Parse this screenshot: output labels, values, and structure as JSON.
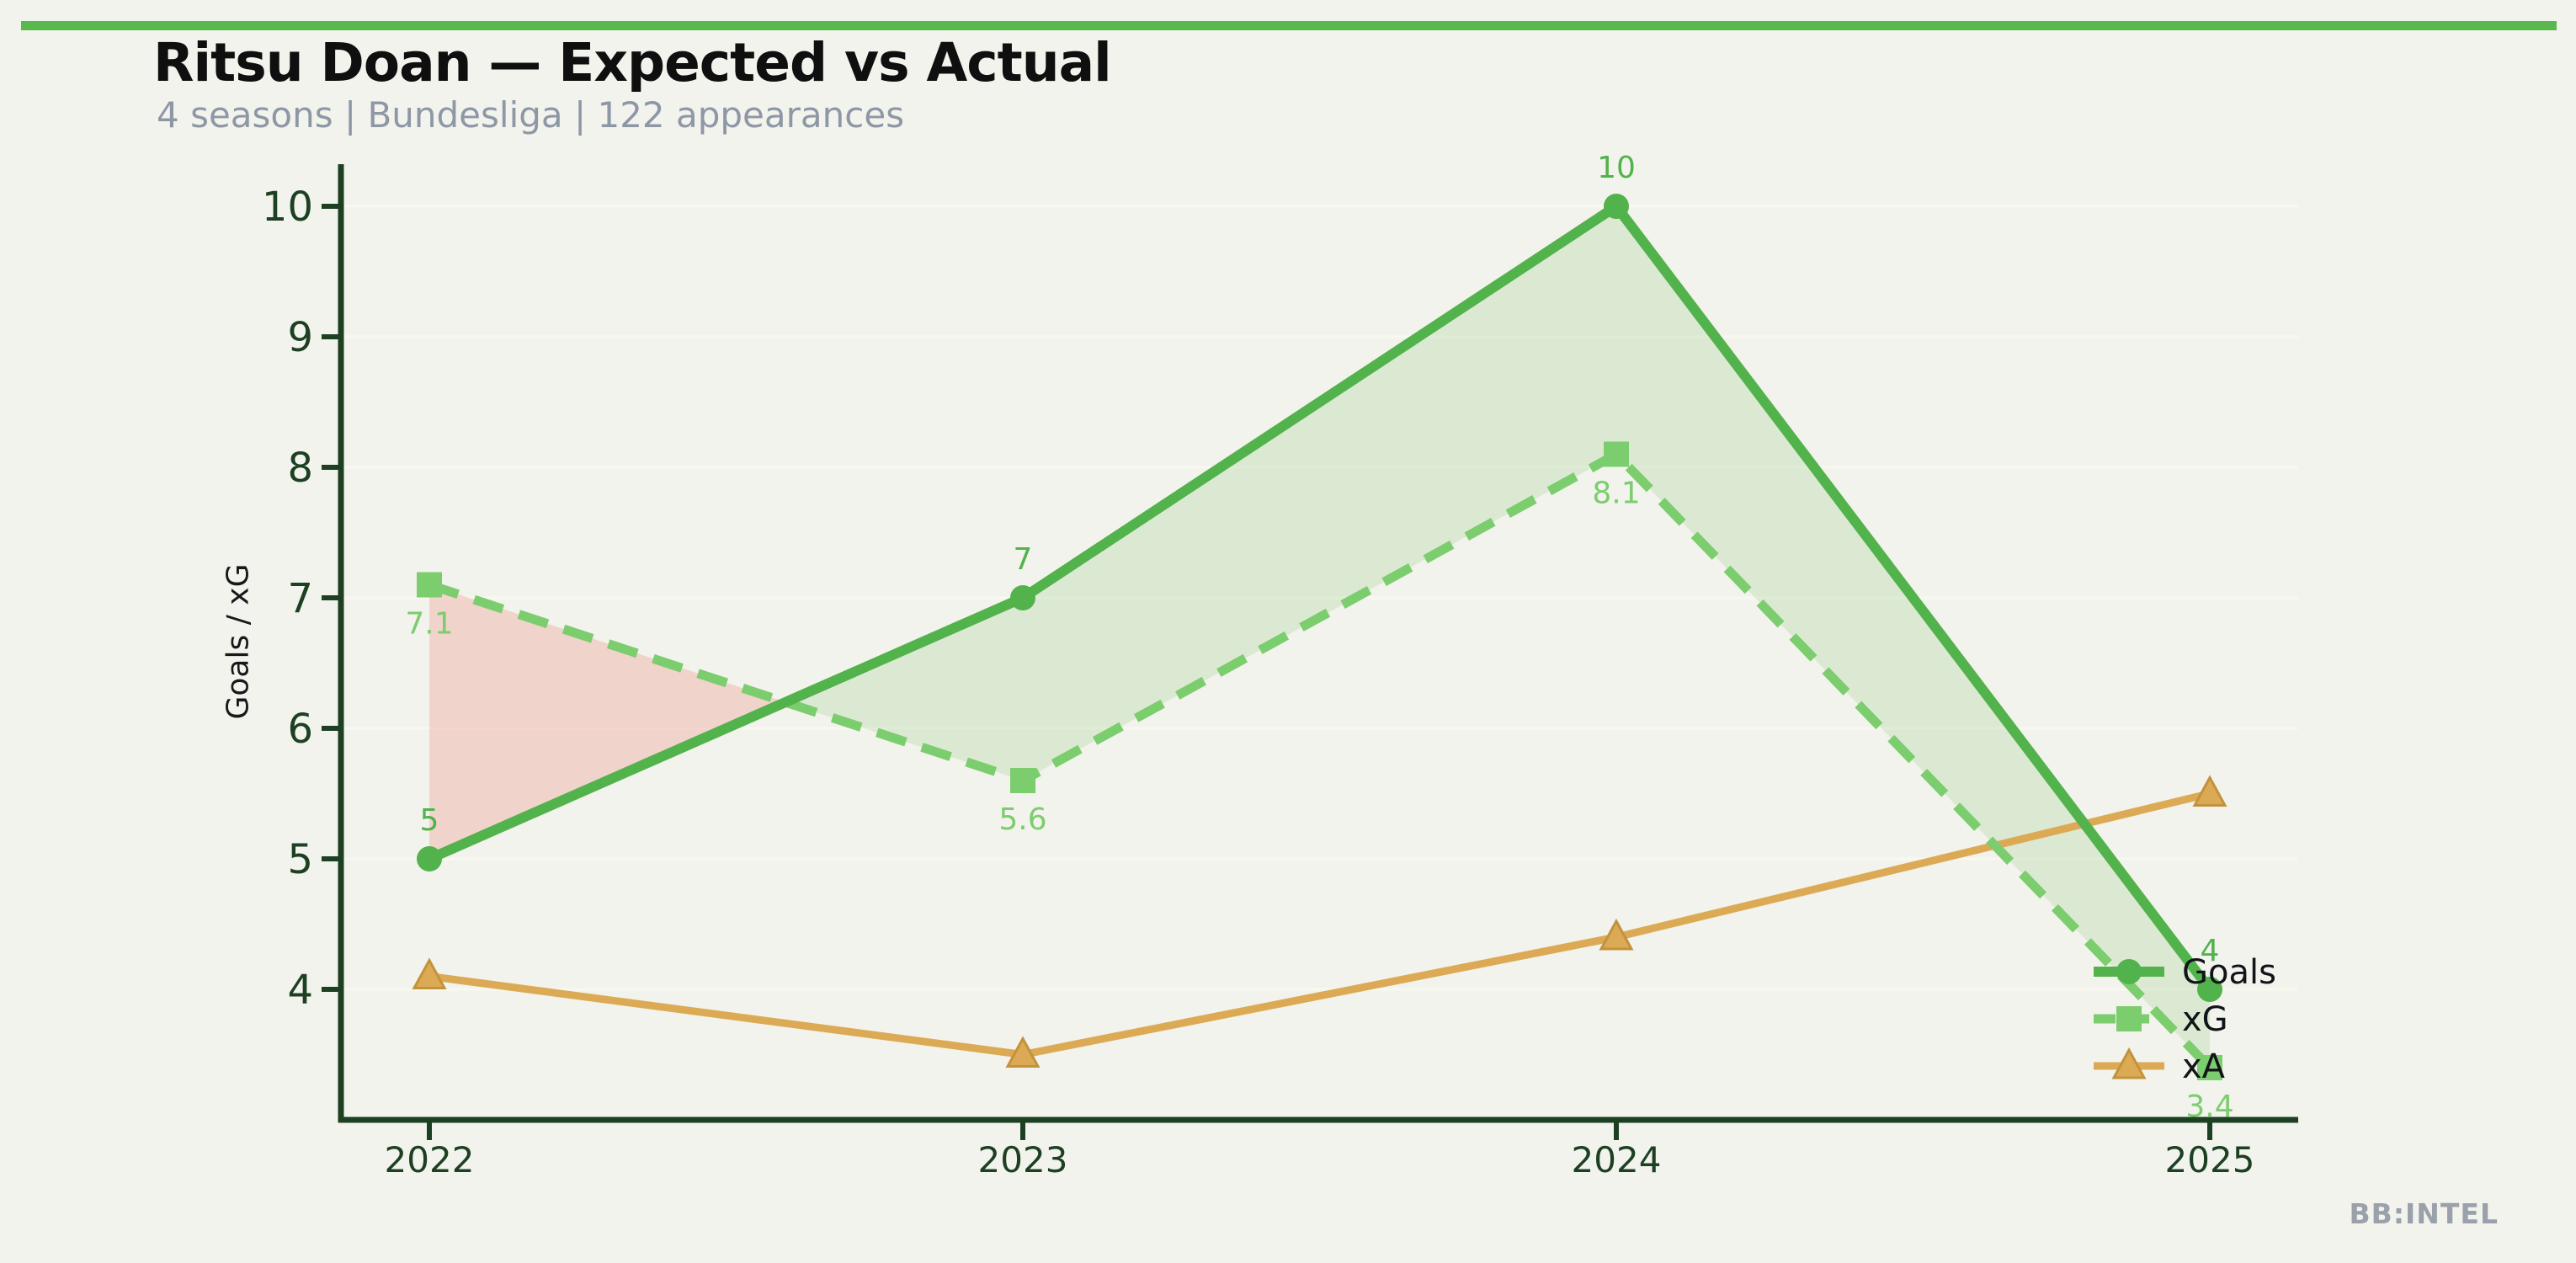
{
  "chart_data": {
    "type": "line",
    "title": "Ritsu Doan — Expected vs Actual",
    "subtitle": "4 seasons | Bundesliga | 122 appearances",
    "watermark": "BB:INTEL",
    "ylabel": "Goals / xG",
    "x": [
      "2022",
      "2023",
      "2024",
      "2025"
    ],
    "yticks": [
      4,
      5,
      6,
      7,
      8,
      9,
      10
    ],
    "ylim": [
      3.0,
      10.32
    ],
    "grid": "horizontal",
    "legend": {
      "position": "inside-right",
      "entries": [
        "Goals",
        "xG",
        "xA"
      ]
    },
    "series": [
      {
        "name": "Goals",
        "values": [
          5,
          7,
          10,
          4
        ],
        "labels": [
          "5",
          "7",
          "10",
          "4"
        ],
        "label_position": "above",
        "color": "#52b24b",
        "marker": "circle",
        "style": "solid"
      },
      {
        "name": "xG",
        "values": [
          7.1,
          5.6,
          8.1,
          3.4
        ],
        "labels": [
          "7.1",
          "5.6",
          "8.1",
          "3.4"
        ],
        "label_position": "below",
        "color": "#7ccd6e",
        "marker": "square",
        "style": "dashed"
      },
      {
        "name": "xA",
        "values": [
          4.1,
          3.5,
          4.4,
          5.5
        ],
        "labels": [],
        "label_position": "none",
        "color": "#dcaa55",
        "marker": "triangle",
        "style": "solid"
      }
    ],
    "fill_between": {
      "upper": "Goals",
      "lower": "xG",
      "overperform_color": "rgba(116,188,98,0.18)",
      "underperform_color": "rgba(236,110,100,0.24)"
    },
    "colors": {
      "accent_bar": "#59b94e",
      "background": "#f2f3ec",
      "axis": "#1d4023",
      "grid": "#f8f8f0",
      "legend_text": "#111418",
      "xa_marker_edge": "#c2923d"
    }
  }
}
